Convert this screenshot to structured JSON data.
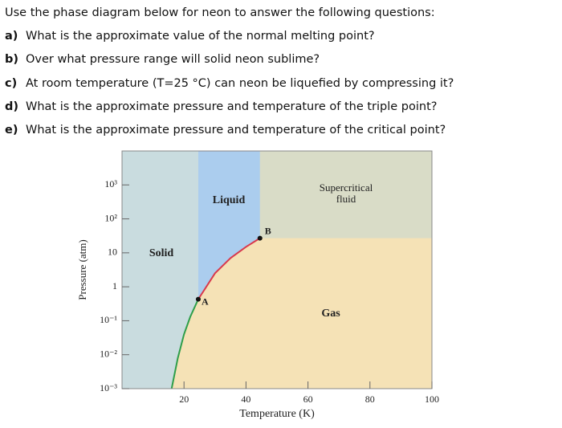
{
  "questions": {
    "intro": "Use the phase diagram below for neon to answer the following questions:",
    "items": [
      {
        "letter": "a)",
        "text": "What is the approximate value of the normal melting point?"
      },
      {
        "letter": "b)",
        "text": "Over what pressure range will solid neon sublime?"
      },
      {
        "letter": "c)",
        "text": "At room temperature (T=25 °C) can neon be liquefied by compressing it?"
      },
      {
        "letter": "d)",
        "text": "What is the approximate pressure and temperature of the triple point?"
      },
      {
        "letter": "e)",
        "text": "What is the approximate pressure and temperature of the critical point?"
      }
    ]
  },
  "chart_data": {
    "type": "phase-diagram",
    "xlabel": "Temperature (K)",
    "ylabel": "Pressure (atm)",
    "xlim": [
      0,
      100
    ],
    "ylim": [
      0.001,
      10000
    ],
    "log_y": true,
    "xticks": [
      20,
      40,
      60,
      80,
      100
    ],
    "yticks": [
      {
        "value": 1000,
        "label": "10³"
      },
      {
        "value": 100,
        "label": "10²"
      },
      10,
      1,
      {
        "value": 0.1,
        "label": "10⁻¹"
      },
      {
        "value": 0.01,
        "label": "10⁻²"
      },
      {
        "value": 0.001,
        "label": "10⁻³"
      }
    ],
    "regions": {
      "solid": {
        "label": "Solid",
        "color": "#c9dcdf"
      },
      "liquid": {
        "label": "Liquid",
        "color": "#abcdee"
      },
      "supercritical": {
        "label": [
          "Supercritical",
          "fluid"
        ],
        "color": "#d9dcc7"
      },
      "gas": {
        "label": "Gas",
        "color": "#f5e2b6"
      }
    },
    "curves": [
      {
        "color": "#2e9e4a",
        "x": [
          16,
          18,
          20,
          22,
          24.6
        ],
        "y": [
          0.001,
          0.008,
          0.04,
          0.13,
          0.43
        ]
      },
      {
        "color": "#d9394c",
        "x": [
          24.6,
          30,
          35,
          40,
          44.5
        ],
        "y": [
          0.43,
          2.5,
          7,
          15,
          27
        ]
      }
    ],
    "points": [
      {
        "label": "A",
        "x": 24.6,
        "y": 0.43
      },
      {
        "label": "B",
        "x": 44.5,
        "y": 27
      }
    ]
  }
}
